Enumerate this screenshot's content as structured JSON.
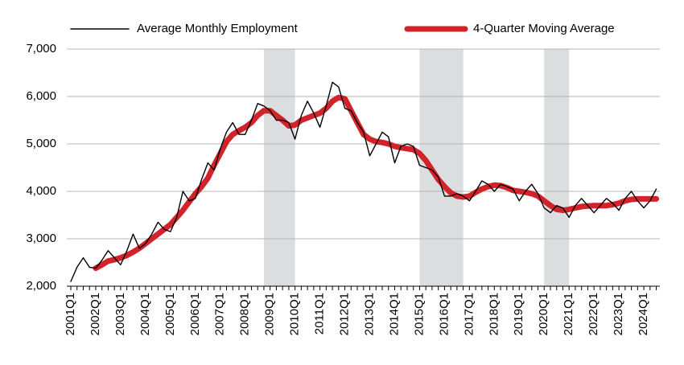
{
  "chart_data": {
    "type": "line",
    "categories": [
      "2001Q1",
      null,
      null,
      null,
      "2002Q1",
      null,
      null,
      null,
      "2003Q1",
      null,
      null,
      null,
      "2004Q1",
      null,
      null,
      null,
      "2005Q1",
      null,
      null,
      null,
      "2006Q1",
      null,
      null,
      null,
      "2007Q1",
      null,
      null,
      null,
      "2008Q1",
      null,
      null,
      null,
      "2009Q1",
      null,
      null,
      null,
      "2010Q1",
      null,
      null,
      null,
      "2011Q1",
      null,
      null,
      null,
      "2012Q1",
      null,
      null,
      null,
      "2013Q1",
      null,
      null,
      null,
      "2014Q1",
      null,
      null,
      null,
      "2015Q1",
      null,
      null,
      null,
      "2016Q1",
      null,
      null,
      null,
      "2017Q1",
      null,
      null,
      null,
      "2018Q1",
      null,
      null,
      null,
      "2019Q1",
      null,
      null,
      null,
      "2020Q1",
      null,
      null,
      null,
      "2021Q1",
      null,
      null,
      null,
      "2022Q1",
      null,
      null,
      null,
      "2023Q1",
      null,
      null,
      null,
      "2024Q1",
      null,
      null
    ],
    "series": [
      {
        "name": "Average Monthly Employment",
        "color": "#000000",
        "width": 1.4,
        "values": [
          2100,
          2400,
          2600,
          2400,
          2380,
          2550,
          2750,
          2600,
          2450,
          2750,
          3100,
          2800,
          2900,
          3100,
          3350,
          3200,
          3150,
          3450,
          4000,
          3800,
          3850,
          4250,
          4600,
          4450,
          4900,
          5250,
          5450,
          5200,
          5200,
          5500,
          5850,
          5800,
          5700,
          5500,
          5500,
          5450,
          5100,
          5600,
          5900,
          5650,
          5350,
          5800,
          6300,
          6200,
          5750,
          5700,
          5450,
          5250,
          4750,
          5000,
          5250,
          5150,
          4600,
          4950,
          5000,
          4950,
          4550,
          4500,
          4450,
          4300,
          3900,
          3900,
          3950,
          3900,
          3800,
          4000,
          4220,
          4150,
          4000,
          4150,
          4100,
          4050,
          3800,
          4000,
          4150,
          3950,
          3650,
          3550,
          3700,
          3650,
          3450,
          3700,
          3850,
          3700,
          3550,
          3700,
          3850,
          3750,
          3600,
          3850,
          4000,
          3800,
          3650,
          3800,
          4050
        ]
      },
      {
        "name": "4-Quarter Moving Average",
        "color": "#d2232a",
        "width": 7,
        "values": [
          null,
          null,
          null,
          null,
          2380,
          2450,
          2530,
          2560,
          2600,
          2650,
          2720,
          2800,
          2900,
          3000,
          3100,
          3200,
          3300,
          3450,
          3600,
          3780,
          3950,
          4100,
          4280,
          4550,
          4800,
          5050,
          5200,
          5280,
          5350,
          5450,
          5600,
          5700,
          5700,
          5600,
          5500,
          5380,
          5400,
          5500,
          5550,
          5600,
          5650,
          5750,
          5900,
          5980,
          5950,
          5700,
          5450,
          5200,
          5100,
          5050,
          5030,
          5000,
          4950,
          4920,
          4900,
          4880,
          4800,
          4650,
          4450,
          4250,
          4100,
          3970,
          3900,
          3880,
          3900,
          3980,
          4050,
          4100,
          4130,
          4120,
          4080,
          4020,
          4000,
          3980,
          3950,
          3900,
          3800,
          3700,
          3620,
          3600,
          3620,
          3650,
          3680,
          3690,
          3700,
          3700,
          3700,
          3720,
          3750,
          3800,
          3830,
          3840,
          3840,
          3840,
          3840
        ]
      }
    ],
    "shaded_periods": [
      [
        31,
        36
      ],
      [
        56,
        63
      ],
      [
        76,
        80
      ]
    ],
    "shade_color": "#dcdddf",
    "ylim": [
      2000,
      7000
    ],
    "yticks": [
      {
        "value": 2000,
        "label": "2,000"
      },
      {
        "value": 3000,
        "label": "3,000"
      },
      {
        "value": 4000,
        "label": "4,000"
      },
      {
        "value": 5000,
        "label": "5,000"
      },
      {
        "value": 6000,
        "label": "6,000"
      },
      {
        "value": 7000,
        "label": "7,000"
      }
    ],
    "grid": true,
    "legend": "top"
  }
}
